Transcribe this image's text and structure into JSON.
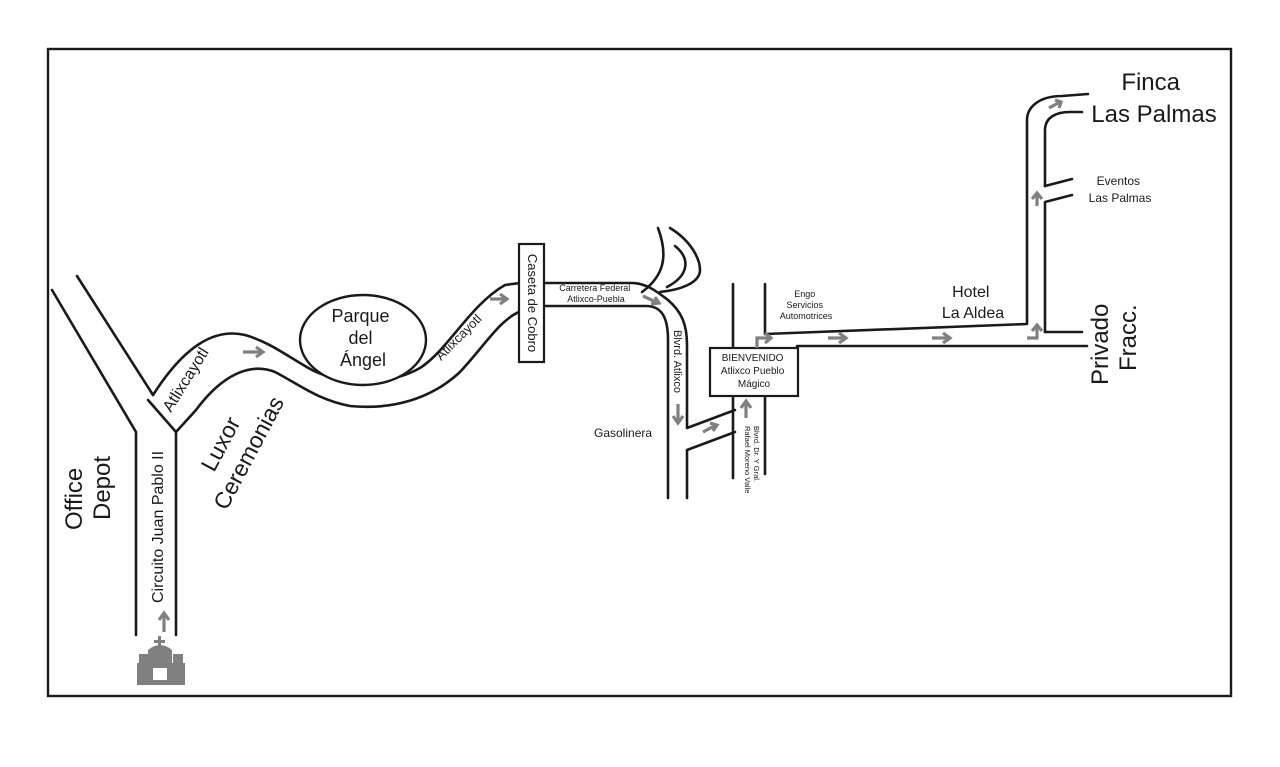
{
  "map": {
    "places": {
      "office_depot": [
        "Office",
        "Depot"
      ],
      "luxor": [
        "Luxor",
        "Ceremonias"
      ],
      "parque": [
        "Parque",
        "del",
        "Ángel"
      ],
      "caseta": "Caseta de Cobro",
      "gasolinera": "Gasolinera",
      "engo": [
        "Engo",
        "Servicios",
        "Automotrices"
      ],
      "bienvenido": [
        "BIENVENIDO",
        "Atlixco Pueblo",
        "Mágico"
      ],
      "hotel": [
        "Hotel",
        "La Aldea"
      ],
      "eventos": [
        "Eventos",
        "Las Palmas"
      ],
      "finca": [
        "Finca",
        "Las Palmas"
      ],
      "fracc": [
        "Fracc.",
        "Privado"
      ]
    },
    "roads": {
      "circuito": "Circuito Juan Pablo II",
      "atlixcayotl_1": "Atlixcayotl",
      "atlixcayotl_2": "Atlixcayotl",
      "carretera": [
        "Carretera Federal",
        "Atlixco-Puebla"
      ],
      "blvrd_atlixco": "Blvrd. Atlixco",
      "blvrd_dr": [
        "Blvrd. Dr. Y Gral.",
        "Rafael Moreno Valle"
      ]
    },
    "icons": {
      "start": "church-icon"
    },
    "colors": {
      "road": "#1a1a1a",
      "arrow": "#808080",
      "background": "#ffffff"
    }
  }
}
